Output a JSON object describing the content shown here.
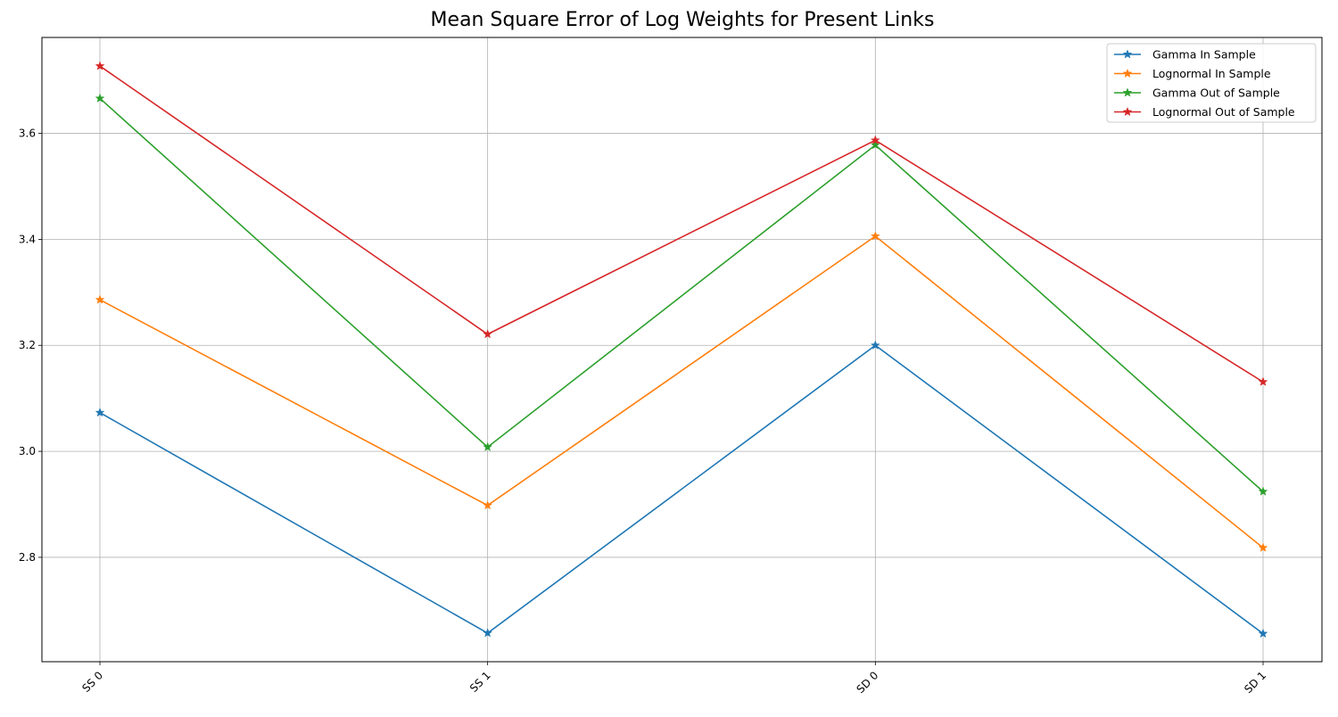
{
  "chart_data": {
    "type": "line",
    "title": "Mean Square Error of Log Weights for Present Links",
    "xlabel": "",
    "ylabel": "",
    "categories": [
      "SS 0",
      "SS 1",
      "SD 0",
      "SD 1"
    ],
    "ylim": [
      2.603,
      3.781
    ],
    "yticks": [
      "2.8",
      "3.0",
      "3.2",
      "3.4",
      "3.6"
    ],
    "grid": true,
    "legend_position": "top-right",
    "marker": "star",
    "series": [
      {
        "name": "Gamma In Sample",
        "color": "#1f77b4",
        "values": [
          3.073,
          2.657,
          3.2,
          2.656
        ]
      },
      {
        "name": "Lognormal In Sample",
        "color": "#ff7f0e",
        "values": [
          3.286,
          2.898,
          3.406,
          2.818
        ]
      },
      {
        "name": "Gamma Out of Sample",
        "color": "#2ca02c",
        "values": [
          3.666,
          3.008,
          3.578,
          2.924
        ]
      },
      {
        "name": "Lognormal Out of Sample",
        "color": "#d62728",
        "values": [
          3.727,
          3.221,
          3.587,
          3.131
        ]
      }
    ]
  }
}
